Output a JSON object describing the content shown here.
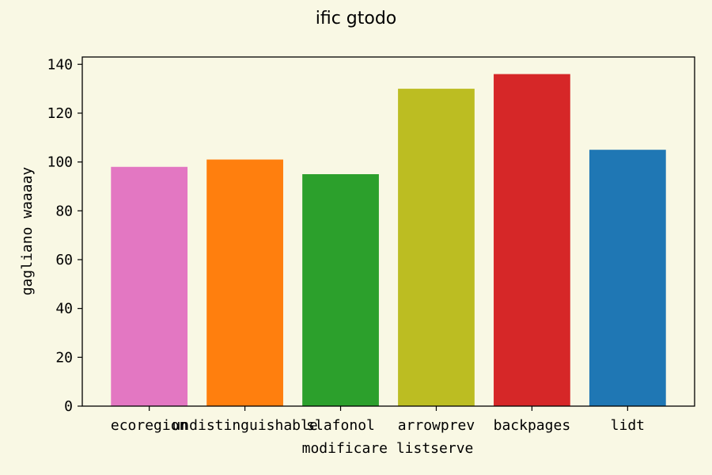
{
  "chart_data": {
    "type": "bar",
    "title": "ific gtodo",
    "xlabel": "modificare listserve",
    "ylabel": "gagliano waaaay",
    "categories": [
      "ecoregion",
      "undistinguishable",
      "slafonol",
      "arrowprev",
      "backpages",
      "lidt"
    ],
    "values": [
      98,
      101,
      95,
      130,
      136,
      105
    ],
    "colors": [
      "#e377c2",
      "#ff7f0e",
      "#2ca02c",
      "#bcbd22",
      "#d62728",
      "#1f77b4"
    ],
    "ylim": [
      0,
      143
    ],
    "yticks": [
      0,
      20,
      40,
      60,
      80,
      100,
      120,
      140
    ],
    "grid": false,
    "legend": "none"
  }
}
